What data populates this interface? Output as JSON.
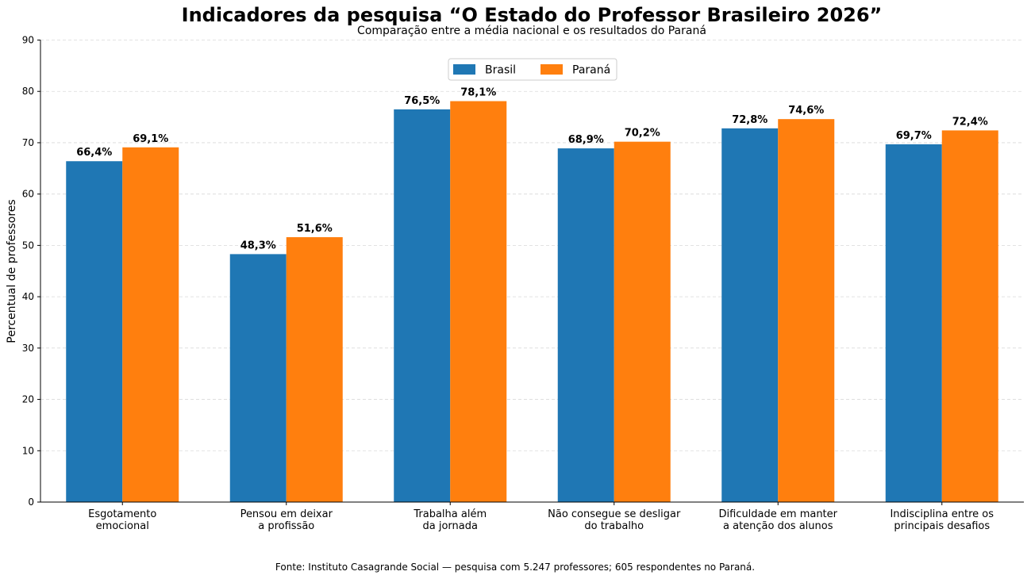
{
  "chart_data": {
    "type": "bar",
    "title": "Indicadores da pesquisa “O Estado do Professor Brasileiro 2026”",
    "subtitle": "Comparação entre a média nacional e os resultados do Paraná",
    "ylabel": "Percentual de professores",
    "xlabel": "",
    "ylim": [
      0,
      90
    ],
    "yticks": [
      "0",
      "10",
      "20",
      "30",
      "40",
      "50",
      "60",
      "70",
      "80",
      "90"
    ],
    "grid": true,
    "legend_position": "top-center",
    "categories": [
      [
        "Esgotamento",
        "emocional"
      ],
      [
        "Pensou em deixar",
        "a profissão"
      ],
      [
        "Trabalha além",
        "da jornada"
      ],
      [
        "Não consegue se desligar",
        "do trabalho"
      ],
      [
        "Dificuldade em manter",
        "a atenção dos alunos"
      ],
      [
        "Indisciplina entre os",
        "principais desafios"
      ]
    ],
    "series": [
      {
        "name": "Brasil",
        "color": "#1f77b4",
        "values": [
          66.4,
          48.3,
          76.5,
          68.9,
          72.8,
          69.7
        ],
        "labels": [
          "66,4%",
          "48,3%",
          "76,5%",
          "68,9%",
          "72,8%",
          "69,7%"
        ]
      },
      {
        "name": "Paraná",
        "color": "#ff7f0e",
        "values": [
          69.1,
          51.6,
          78.1,
          70.2,
          74.6,
          72.4
        ],
        "labels": [
          "69,1%",
          "51,6%",
          "78,1%",
          "70,2%",
          "74,6%",
          "72,4%"
        ]
      }
    ],
    "source": "Fonte: Instituto Casagrande Social — pesquisa com 5.247 professores; 605 respondentes no Paraná."
  }
}
